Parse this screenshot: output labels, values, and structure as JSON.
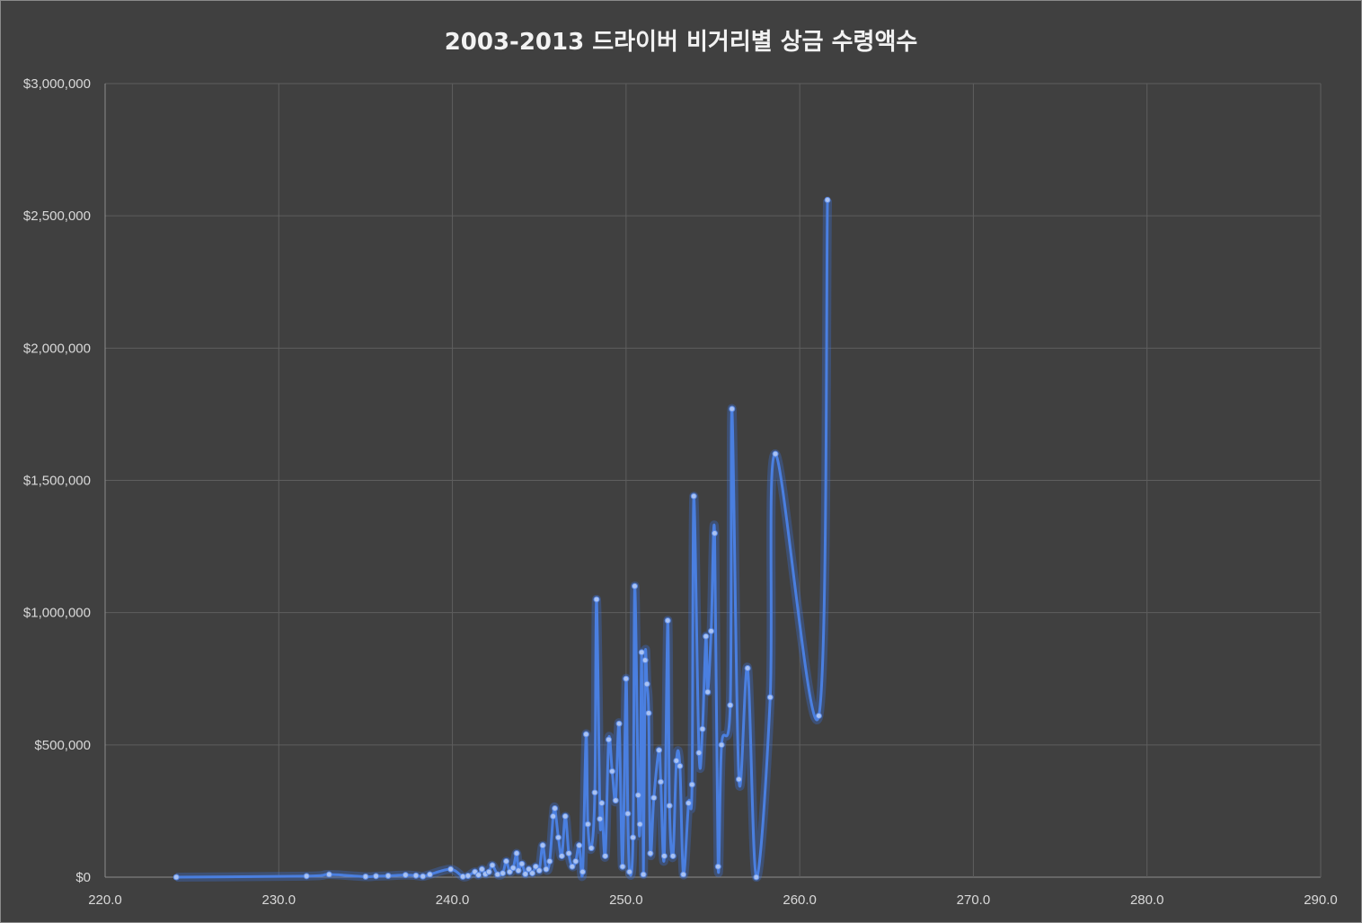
{
  "chart_data": {
    "type": "scatter",
    "title": "2003-2013 드라이버 비거리별 상금 수령액수",
    "xlabel": "",
    "ylabel": "",
    "xlim": [
      220,
      290
    ],
    "ylim": [
      0,
      3000000
    ],
    "x_ticks": [
      220,
      230,
      240,
      250,
      260,
      270,
      280,
      290
    ],
    "x_tick_labels": [
      "220.0",
      "230.0",
      "240.0",
      "250.0",
      "260.0",
      "270.0",
      "280.0",
      "290.0"
    ],
    "y_ticks": [
      0,
      500000,
      1000000,
      1500000,
      2000000,
      2500000,
      3000000
    ],
    "y_tick_labels": [
      "$0",
      "$500,000",
      "$1,000,000",
      "$1,500,000",
      "$2,000,000",
      "$2,500,000",
      "$3,000,000"
    ],
    "grid": true,
    "legend": "none",
    "line_style": "smoothed",
    "series_color": "#4a7fe0",
    "point_color": "#a9c2f2",
    "series": [
      {
        "x": [
          224.1,
          231.6,
          232.9,
          235.0,
          235.6,
          236.3,
          237.3,
          237.9,
          238.3,
          238.7,
          239.9,
          240.6,
          240.9,
          241.3,
          241.5,
          241.7,
          241.9,
          242.1,
          242.3,
          242.6,
          242.9,
          243.1,
          243.3,
          243.5,
          243.7,
          243.8,
          244.0,
          244.2,
          244.4,
          244.6,
          244.8,
          245.0,
          245.2,
          245.4,
          245.6,
          245.8,
          245.9,
          246.1,
          246.3,
          246.5,
          246.7,
          246.9,
          247.1,
          247.3,
          247.5,
          247.7,
          247.8,
          248.0,
          248.2,
          248.3,
          248.5,
          248.6,
          248.8,
          249.0,
          249.2,
          249.4,
          249.6,
          249.8,
          250.0,
          250.1,
          250.2,
          250.4,
          250.5,
          250.7,
          250.8,
          250.9,
          251.0,
          251.1,
          251.2,
          251.3,
          251.4,
          251.6,
          251.9,
          252.0,
          252.2,
          252.4,
          252.5,
          252.7,
          252.9,
          253.1,
          253.3,
          253.6,
          253.8,
          253.9,
          254.2,
          254.4,
          254.6,
          254.7,
          254.9,
          255.1,
          255.3,
          255.5,
          256.0,
          256.1,
          256.5,
          257.0,
          257.5,
          258.3,
          258.6,
          261.1,
          261.6
        ],
        "y": [
          0,
          4000,
          10000,
          2000,
          4000,
          5000,
          8000,
          6000,
          3000,
          10000,
          30000,
          2000,
          5000,
          20000,
          8000,
          30000,
          12000,
          20000,
          45000,
          10000,
          15000,
          60000,
          20000,
          35000,
          90000,
          25000,
          50000,
          12000,
          30000,
          15000,
          40000,
          25000,
          120000,
          30000,
          60000,
          230000,
          260000,
          150000,
          80000,
          230000,
          90000,
          40000,
          60000,
          120000,
          20000,
          540000,
          200000,
          110000,
          320000,
          1050000,
          220000,
          280000,
          80000,
          520000,
          400000,
          290000,
          580000,
          40000,
          750000,
          240000,
          20000,
          150000,
          1100000,
          310000,
          200000,
          850000,
          10000,
          820000,
          730000,
          620000,
          90000,
          300000,
          480000,
          360000,
          80000,
          970000,
          270000,
          80000,
          440000,
          420000,
          10000,
          280000,
          350000,
          1440000,
          470000,
          560000,
          910000,
          700000,
          930000,
          1300000,
          40000,
          500000,
          650000,
          1770000,
          370000,
          790000,
          0,
          680000,
          1600000,
          610000,
          2560000
        ]
      }
    ]
  }
}
